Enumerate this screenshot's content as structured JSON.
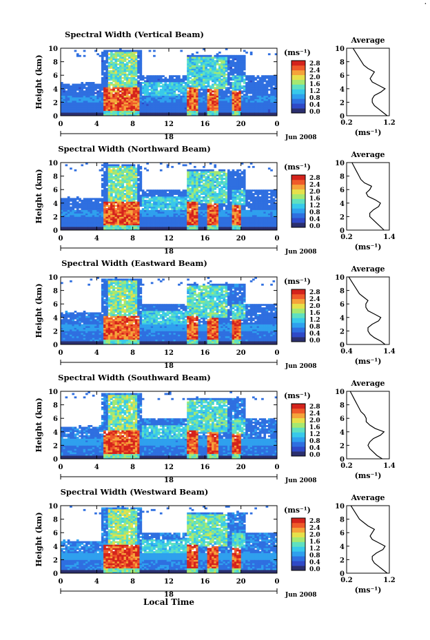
{
  "figure": {
    "corner_mark": "."
  },
  "shared": {
    "ylabel": "Height (km)",
    "unit_label": "(ms⁻¹)",
    "avg_title": "Average",
    "avg_xlabel": "(ms⁻¹)",
    "date_label": "Jun 2008",
    "day_label": "18",
    "x_ticks": [
      "0",
      "4",
      "8",
      "12",
      "16",
      "20",
      "0"
    ],
    "y_ticks": [
      "0",
      "2",
      "4",
      "6",
      "8",
      "10"
    ],
    "cbar_ticks": [
      "0.0",
      "0.4",
      "0.8",
      "1.2",
      "1.6",
      "2.0",
      "2.4",
      "2.8"
    ],
    "cbar_colors": [
      "#2b2f6e",
      "#2f49c7",
      "#2f6fe0",
      "#2fa0ee",
      "#38c9ea",
      "#5fe0c0",
      "#a6e870",
      "#e6e04a",
      "#f5a33a",
      "#ef5a2a",
      "#d4231c"
    ],
    "xlabel_bottom": "Local Time"
  },
  "chart_data": [
    {
      "type": "heatmap",
      "title": "Spectral Width (Vertical Beam)",
      "xlim": [
        0,
        24
      ],
      "ylim": [
        0,
        10
      ],
      "clim": [
        0.0,
        2.8
      ],
      "avg_ticks": [
        "0.2",
        "1.2"
      ],
      "avg_xlim": [
        0.2,
        1.2
      ],
      "average_profile": {
        "height_km": [
          0,
          0.5,
          1,
          1.5,
          2,
          2.5,
          3,
          3.5,
          4,
          4.5,
          5,
          5.5,
          6,
          6.5,
          7,
          7.5,
          8,
          8.5,
          9,
          9.5,
          10
        ],
        "width": [
          1.15,
          1.05,
          0.95,
          0.85,
          0.8,
          0.8,
          0.85,
          1.0,
          1.1,
          0.95,
          0.8,
          0.75,
          0.8,
          0.85,
          0.7,
          0.6,
          0.55,
          0.5,
          0.45,
          0.4,
          0.35
        ]
      }
    },
    {
      "type": "heatmap",
      "title": "Spectral Width (Northward Beam)",
      "xlim": [
        0,
        24
      ],
      "ylim": [
        0,
        10
      ],
      "clim": [
        0.0,
        2.8
      ],
      "avg_ticks": [
        "0.2",
        "1.4"
      ],
      "avg_xlim": [
        0.2,
        1.4
      ],
      "average_profile": {
        "height_km": [
          0,
          0.5,
          1,
          1.5,
          2,
          2.5,
          3,
          3.5,
          4,
          4.5,
          5,
          5.5,
          6,
          6.5,
          7,
          7.5,
          8,
          8.5,
          9,
          9.5,
          10
        ],
        "width": [
          1.25,
          1.15,
          1.05,
          0.95,
          0.85,
          0.85,
          0.95,
          1.1,
          1.15,
          1.0,
          0.8,
          0.75,
          0.85,
          0.9,
          0.7,
          0.6,
          0.55,
          0.5,
          0.45,
          0.4,
          0.35
        ]
      }
    },
    {
      "type": "heatmap",
      "title": "Spectral Width (Eastward Beam)",
      "xlim": [
        0,
        24
      ],
      "ylim": [
        0,
        10
      ],
      "clim": [
        0.0,
        2.8
      ],
      "avg_ticks": [
        "0.4",
        "1.4"
      ],
      "avg_xlim": [
        0.4,
        1.4
      ],
      "average_profile": {
        "height_km": [
          0,
          0.5,
          1,
          1.5,
          2,
          2.5,
          3,
          3.5,
          4,
          4.5,
          5,
          5.5,
          6,
          6.5,
          7,
          7.5,
          8,
          8.5,
          9,
          9.5,
          10
        ],
        "width": [
          1.3,
          1.2,
          1.05,
          0.95,
          0.9,
          0.9,
          1.0,
          1.15,
          1.2,
          1.05,
          0.9,
          0.85,
          0.85,
          0.9,
          0.8,
          0.7,
          0.65,
          0.6,
          0.55,
          0.5,
          0.45
        ]
      }
    },
    {
      "type": "heatmap",
      "title": "Spectral Width (Southward Beam)",
      "xlim": [
        0,
        24
      ],
      "ylim": [
        0,
        10
      ],
      "clim": [
        0.0,
        2.8
      ],
      "avg_ticks": [
        "0.2",
        "1.4"
      ],
      "avg_xlim": [
        0.2,
        1.4
      ],
      "average_profile": {
        "height_km": [
          0,
          0.5,
          1,
          1.5,
          2,
          2.5,
          3,
          3.5,
          4,
          4.5,
          5,
          5.5,
          6,
          6.5,
          7,
          7.5,
          8,
          8.5,
          9,
          9.5,
          10
        ],
        "width": [
          1.2,
          1.05,
          0.95,
          0.85,
          0.8,
          0.85,
          0.95,
          1.15,
          1.25,
          1.0,
          0.85,
          0.75,
          0.75,
          0.7,
          0.6,
          0.55,
          0.5,
          0.45,
          0.4,
          0.35,
          0.3
        ]
      }
    },
    {
      "type": "heatmap",
      "title": "Spectral Width (Westward Beam)",
      "xlim": [
        0,
        24
      ],
      "ylim": [
        0,
        10
      ],
      "clim": [
        0.0,
        2.8
      ],
      "avg_ticks": [
        "0.2",
        "1.2"
      ],
      "avg_xlim": [
        0.2,
        1.2
      ],
      "average_profile": {
        "height_km": [
          0,
          0.5,
          1,
          1.5,
          2,
          2.5,
          3,
          3.5,
          4,
          4.5,
          5,
          5.5,
          6,
          6.5,
          7,
          7.5,
          8,
          8.5,
          9,
          9.5,
          10
        ],
        "width": [
          1.15,
          1.05,
          0.95,
          0.85,
          0.8,
          0.8,
          0.9,
          1.05,
          1.1,
          0.95,
          0.8,
          0.75,
          0.8,
          0.85,
          0.7,
          0.6,
          0.5,
          0.45,
          0.4,
          0.35,
          0.3
        ]
      }
    }
  ]
}
